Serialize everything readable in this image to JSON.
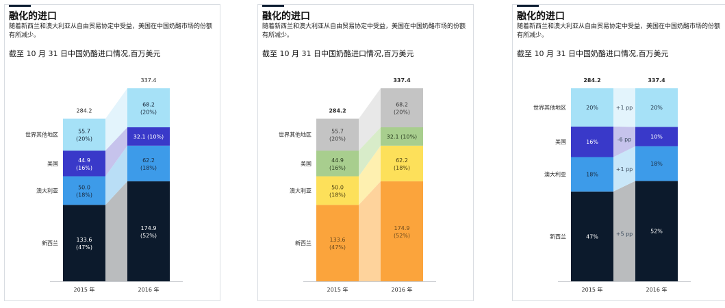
{
  "panels": [
    {
      "title": "融化的进口",
      "subtitle": "随着新西兰和澳大利亚从自由贸易协定中受益，美国在中国奶酪市场的份额有所减少。",
      "heading": "截至 10 月 31 日中国奶酪进口情况,百万美元",
      "variant": "dark",
      "segment_colors": [
        "#0c1a2c",
        "#3d9be9",
        "#3939c9",
        "#a6e1f7"
      ],
      "band_colors": [
        "#babcbe",
        "#b9def6",
        "#c6c3ec",
        "#e3f4fc"
      ],
      "label_colors": [
        "#ffffff",
        "#1b2a3d",
        "#ffffff",
        "#1b2a3d"
      ]
    },
    {
      "title": "融化的进口",
      "subtitle": "随着新西兰和澳大利亚从自由贸易协定中受益，美国在中国奶酪市场的份额有所减少。",
      "heading": "截至 10 月 31 日中国奶酪进口情况,百万美元",
      "variant": "warm",
      "segment_colors": [
        "#fba43c",
        "#fde05a",
        "#a8ce8e",
        "#c4c4c4"
      ],
      "band_colors": [
        "#fed39c",
        "#fef0b0",
        "#d8ecc9",
        "#e8e8e8"
      ],
      "label_colors": [
        "#6b4a1e",
        "#4a3d12",
        "#2c3f22",
        "#3b3b3b"
      ]
    },
    {
      "title": "融化的进口",
      "subtitle": "随着新西兰和澳大利亚从自由贸易协定中受益，美国在中国奶酪市场的份额有所减少。",
      "heading": "截至 10 月 31 日中国奶酪进口情况,百万美元",
      "variant": "share",
      "segment_colors": [
        "#0c1a2c",
        "#3d9be9",
        "#3939c9",
        "#a6e1f7"
      ],
      "band_colors": [
        "#babcbe",
        "#c9e7f9",
        "#c6c3ec",
        "#e3f4fc"
      ],
      "label_colors": [
        "#ffffff",
        "#1b2a3d",
        "#ffffff",
        "#1b2a3d"
      ]
    }
  ],
  "chart_data": [
    {
      "type": "bar",
      "title": "截至 10 月 31 日中国奶酪进口情况,百万美元",
      "categories": [
        "2015 年",
        "2016 年"
      ],
      "series": [
        {
          "name": "新西兰",
          "values": [
            133.6,
            174.9
          ],
          "value_labels": [
            "133.6",
            "174.9"
          ],
          "share_labels": [
            "(47%)",
            "(52%)"
          ]
        },
        {
          "name": "澳大利亚",
          "values": [
            50.0,
            62.2
          ],
          "value_labels": [
            "50.0",
            "62.2"
          ],
          "share_labels": [
            "(18%)",
            "(18%)"
          ]
        },
        {
          "name": "美国",
          "values": [
            44.9,
            32.1
          ],
          "value_labels": [
            "44.9",
            "32.1 (10%)"
          ],
          "share_labels": [
            "(16%)",
            ""
          ]
        },
        {
          "name": "世界其他地区",
          "values": [
            55.7,
            68.2
          ],
          "value_labels": [
            "55.7",
            "68.2"
          ],
          "share_labels": [
            "(20%)",
            "(20%)"
          ]
        }
      ],
      "totals": [
        284.2,
        337.4
      ],
      "total_labels": [
        "284.2",
        "337.4"
      ],
      "stacked": true
    },
    {
      "type": "bar",
      "title": "截至 10 月 31 日中国奶酪进口情况,百万美元",
      "categories": [
        "2015 年",
        "2016 年"
      ],
      "series": [
        {
          "name": "新西兰",
          "values": [
            133.6,
            174.9
          ],
          "value_labels": [
            "133.6",
            "174.9"
          ],
          "share_labels": [
            "(47%)",
            "(52%)"
          ]
        },
        {
          "name": "澳大利亚",
          "values": [
            50.0,
            62.2
          ],
          "value_labels": [
            "50.0",
            "62.2"
          ],
          "share_labels": [
            "(18%)",
            "(18%)"
          ]
        },
        {
          "name": "美国",
          "values": [
            44.9,
            32.1
          ],
          "value_labels": [
            "44.9",
            "32.1 (10%)"
          ],
          "share_labels": [
            "(16%)",
            ""
          ]
        },
        {
          "name": "世界其他地区",
          "values": [
            55.7,
            68.2
          ],
          "value_labels": [
            "55.7",
            "68.2"
          ],
          "share_labels": [
            "(20%)",
            "(20%)"
          ]
        }
      ],
      "totals": [
        284.2,
        337.4
      ],
      "total_labels": [
        "284.2",
        "337.4"
      ],
      "stacked": true
    },
    {
      "type": "bar",
      "title": "截至 10 月 31 日中国奶酪进口情况,百万美元",
      "categories": [
        "2015 年",
        "2016 年"
      ],
      "series": [
        {
          "name": "新西兰",
          "values": [
            47,
            52
          ],
          "value_labels": [
            "47%",
            "52%"
          ],
          "change_label": "+5 pp"
        },
        {
          "name": "澳大利亚",
          "values": [
            18,
            18
          ],
          "value_labels": [
            "18%",
            "18%"
          ],
          "change_label": "+1 pp"
        },
        {
          "name": "美国",
          "values": [
            16,
            10
          ],
          "value_labels": [
            "16%",
            "10%"
          ],
          "change_label": "-6 pp"
        },
        {
          "name": "世界其他地区",
          "values": [
            20,
            20
          ],
          "value_labels": [
            "20%",
            "20%"
          ],
          "change_label": "+1 pp"
        }
      ],
      "totals": [
        284.2,
        337.4
      ],
      "total_labels": [
        "284.2",
        "337.4"
      ],
      "unit": "%",
      "stacked": true,
      "normalized": true
    }
  ]
}
